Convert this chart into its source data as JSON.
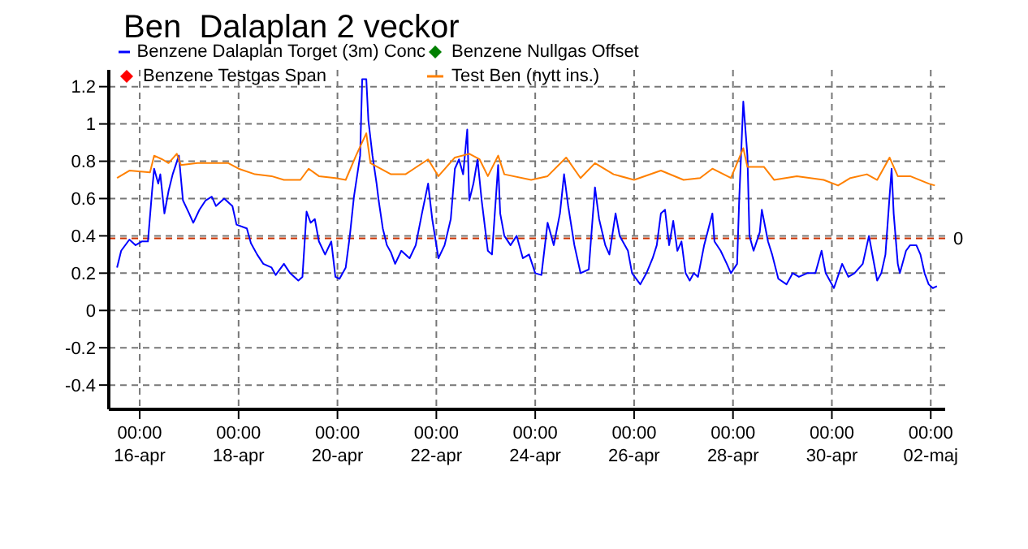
{
  "chart_data": {
    "type": "line",
    "title": "Ben  Dalaplan 2 veckor",
    "xlim": [
      "--04-15T09:00",
      "--05-02T07:00"
    ],
    "ylim": [
      -0.53,
      1.29
    ],
    "xticks": [
      {
        "value": "--04-16T00:00",
        "label": "00:00\n16-apr"
      },
      {
        "value": "--04-18T00:00",
        "label": "00:00\n18-apr"
      },
      {
        "value": "--04-20T00:00",
        "label": "00:00\n20-apr"
      },
      {
        "value": "--04-22T00:00",
        "label": "00:00\n22-apr"
      },
      {
        "value": "--04-24T00:00",
        "label": "00:00\n24-apr"
      },
      {
        "value": "--04-26T00:00",
        "label": "00:00\n26-apr"
      },
      {
        "value": "--04-28T00:00",
        "label": "00:00\n28-apr"
      },
      {
        "value": "--04-30T00:00",
        "label": "00:00\n30-apr"
      },
      {
        "value": "--05-02T00:00",
        "label": "00:00\n02-maj"
      }
    ],
    "yticks": [
      -0.4,
      -0.2,
      0,
      0.2,
      0.4,
      0.6,
      0.8,
      1,
      1.2
    ],
    "grid": true,
    "legend": "top left",
    "marker": "none",
    "line_style": "solid",
    "ref_lines": [
      {
        "axis": "y",
        "value": 0.386,
        "label": "0",
        "color": "#cc3300",
        "line_style": "dashed"
      }
    ],
    "series": [
      {
        "name": "Benzene Dalaplan Torget (3m) Conc",
        "color": "#0000ff",
        "x": [
          "--04-15T13:00",
          "--04-15T15:00",
          "--04-15T19:00",
          "--04-15T22:00",
          "--04-16T01:00",
          "--04-16T04:00",
          "--04-16T06:00",
          "--04-16T07:00",
          "--04-16T09:00",
          "--04-16T10:00",
          "--04-16T12:00",
          "--04-16T14:00",
          "--04-16T16:00",
          "--04-16T19:00",
          "--04-16T21:00",
          "--04-17T00:00",
          "--04-17T02:00",
          "--04-17T05:00",
          "--04-17T08:00",
          "--04-17T11:00",
          "--04-17T13:00",
          "--04-17T17:00",
          "--04-17T21:00",
          "--04-17T23:00",
          "--04-18T04:00",
          "--04-18T06:00",
          "--04-18T09:00",
          "--04-18T12:00",
          "--04-18T16:00",
          "--04-18T18:00",
          "--04-18T22:00",
          "--04-19T01:00",
          "--04-19T05:00",
          "--04-19T07:00",
          "--04-19T09:00",
          "--04-19T11:00",
          "--04-19T13:00",
          "--04-19T15:00",
          "--04-19T18:00",
          "--04-19T21:00",
          "--04-19T23:00",
          "--04-20T01:00",
          "--04-20T04:00",
          "--04-20T06:00",
          "--04-20T08:00",
          "--04-20T11:00",
          "--04-20T12:00",
          "--04-20T14:00",
          "--04-20T15:00",
          "--04-20T17:00",
          "--04-20T19:00",
          "--04-20T20:00",
          "--04-20T22:00",
          "--04-21T00:00",
          "--04-21T02:00",
          "--04-21T04:00",
          "--04-21T07:00",
          "--04-21T11:00",
          "--04-21T14:00",
          "--04-21T17:00",
          "--04-21T20:00",
          "--04-21T22:00",
          "--04-22T01:00",
          "--04-22T04:00",
          "--04-22T07:00",
          "--04-22T09:00",
          "--04-22T11:00",
          "--04-22T13:00",
          "--04-22T15:00",
          "--04-22T16:00",
          "--04-22T18:00",
          "--04-22T20:00",
          "--04-22T22:00",
          "--04-23T01:00",
          "--04-23T03:00",
          "--04-23T06:00",
          "--04-23T07:00",
          "--04-23T09:00",
          "--04-23T12:00",
          "--04-23T15:00",
          "--04-23T18:00",
          "--04-23T21:00",
          "--04-24T00:00",
          "--04-24T03:00",
          "--04-24T06:00",
          "--04-24T09:00",
          "--04-24T12:00",
          "--04-24T14:00",
          "--04-24T16:00",
          "--04-24T19:00",
          "--04-24T22:00",
          "--04-25T02:00",
          "--04-25T03:00",
          "--04-25T05:00",
          "--04-25T07:00",
          "--04-25T10:00",
          "--04-25T12:00",
          "--04-25T15:00",
          "--04-25T17:00",
          "--04-25T21:00",
          "--04-25T23:00",
          "--04-26T03:00",
          "--04-26T06:00",
          "--04-26T09:00",
          "--04-26T11:00",
          "--04-26T13:00",
          "--04-26T15:00",
          "--04-26T17:00",
          "--04-26T19:00",
          "--04-26T21:00",
          "--04-26T23:00",
          "--04-27T01:00",
          "--04-27T03:00",
          "--04-27T05:00",
          "--04-27T07:00",
          "--04-27T10:00",
          "--04-27T14:00",
          "--04-27T15:00",
          "--04-27T18:00",
          "--04-27T21:00",
          "--04-27T23:00",
          "--04-28T02:00",
          "--04-28T03:00",
          "--04-28T05:00",
          "--04-28T07:00",
          "--04-28T08:00",
          "--04-28T10:00",
          "--04-28T13:00",
          "--04-28T14:00",
          "--04-28T17:00",
          "--04-28T19:00",
          "--04-28T22:00",
          "--04-29T02:00",
          "--04-29T05:00",
          "--04-29T08:00",
          "--04-29T12:00",
          "--04-29T16:00",
          "--04-29T19:00",
          "--04-29T21:00",
          "--04-30T01:00",
          "--04-30T05:00",
          "--04-30T08:00",
          "--04-30T11:00",
          "--04-30T15:00",
          "--04-30T18:00",
          "--04-30T20:00",
          "--04-30T22:00",
          "--05-01T00:00",
          "--05-01T02:00",
          "--05-01T04:00",
          "--05-01T05:00",
          "--05-01T06:00",
          "--05-01T08:00",
          "--05-01T09:00",
          "--05-01T12:00",
          "--05-01T14:00",
          "--05-01T17:00",
          "--05-01T19:00",
          "--05-01T21:00",
          "--05-01T23:00",
          "--05-02T01:00",
          "--05-02T03:00"
        ],
        "values": [
          0.23,
          0.32,
          0.38,
          0.35,
          0.37,
          0.37,
          0.64,
          0.76,
          0.68,
          0.73,
          0.52,
          0.64,
          0.73,
          0.83,
          0.59,
          0.52,
          0.47,
          0.54,
          0.59,
          0.61,
          0.56,
          0.6,
          0.56,
          0.46,
          0.44,
          0.36,
          0.3,
          0.25,
          0.23,
          0.19,
          0.25,
          0.2,
          0.16,
          0.18,
          0.53,
          0.47,
          0.49,
          0.37,
          0.3,
          0.37,
          0.18,
          0.17,
          0.23,
          0.4,
          0.61,
          0.83,
          1.24,
          1.24,
          1.02,
          0.83,
          0.68,
          0.59,
          0.44,
          0.35,
          0.31,
          0.25,
          0.32,
          0.28,
          0.35,
          0.52,
          0.68,
          0.49,
          0.28,
          0.35,
          0.49,
          0.76,
          0.81,
          0.73,
          0.97,
          0.59,
          0.68,
          0.81,
          0.59,
          0.32,
          0.3,
          0.78,
          0.52,
          0.4,
          0.35,
          0.4,
          0.28,
          0.3,
          0.2,
          0.19,
          0.47,
          0.35,
          0.52,
          0.73,
          0.56,
          0.35,
          0.2,
          0.22,
          0.37,
          0.66,
          0.49,
          0.35,
          0.3,
          0.52,
          0.4,
          0.32,
          0.2,
          0.14,
          0.2,
          0.28,
          0.35,
          0.52,
          0.54,
          0.35,
          0.48,
          0.32,
          0.37,
          0.2,
          0.16,
          0.2,
          0.18,
          0.35,
          0.52,
          0.37,
          0.32,
          0.25,
          0.2,
          0.25,
          0.59,
          1.12,
          0.83,
          0.4,
          0.32,
          0.42,
          0.54,
          0.37,
          0.3,
          0.17,
          0.14,
          0.2,
          0.18,
          0.2,
          0.2,
          0.32,
          0.2,
          0.12,
          0.25,
          0.18,
          0.2,
          0.25,
          0.4,
          0.28,
          0.16,
          0.2,
          0.3,
          0.61,
          0.76,
          0.52,
          0.25,
          0.2,
          0.32,
          0.35,
          0.35,
          0.3,
          0.2,
          0.14,
          0.12,
          0.13
        ]
      },
      {
        "name": "Benzene Nullgas Offset",
        "type": "scatter",
        "marker": "diamond",
        "color": "#008000"
      },
      {
        "name": "Benzene Testgas Span",
        "type": "scatter",
        "marker": "diamond",
        "color": "#ff0000"
      },
      {
        "name": "Test Ben (nytt ins.)",
        "color": "#ff8000",
        "x": [
          "--04-15T13:00",
          "--04-15T19:00",
          "--04-16T05:00",
          "--04-16T07:00",
          "--04-16T11:00",
          "--04-16T14:00",
          "--04-16T18:00",
          "--04-16T20:00",
          "--04-17T04:00",
          "--04-17T19:00",
          "--04-18T00:00",
          "--04-18T08:00",
          "--04-18T16:00",
          "--04-18T22:00",
          "--04-19T06:00",
          "--04-19T10:00",
          "--04-19T15:00",
          "--04-19T23:00",
          "--04-20T04:00",
          "--04-20T09:00",
          "--04-20T14:00",
          "--04-20T16:00",
          "--04-21T02:00",
          "--04-21T09:00",
          "--04-21T20:00",
          "--04-22T01:00",
          "--04-22T09:00",
          "--04-22T16:00",
          "--04-22T21:00",
          "--04-23T01:00",
          "--04-23T06:00",
          "--04-23T09:00",
          "--04-23T22:00",
          "--04-24T06:00",
          "--04-24T15:00",
          "--04-24T22:00",
          "--04-25T05:00",
          "--04-25T14:00",
          "--04-26T00:00",
          "--04-26T13:00",
          "--04-27T00:00",
          "--04-27T08:00",
          "--04-27T14:00",
          "--04-27T23:00",
          "--04-28T05:00",
          "--04-28T07:00",
          "--04-28T15:00",
          "--04-28T20:00",
          "--04-29T07:00",
          "--04-29T20:00",
          "--04-30T03:00",
          "--04-30T09:00",
          "--04-30T17:00",
          "--04-30T22:00",
          "--05-01T04:00",
          "--05-01T08:00",
          "--05-01T14:00",
          "--05-01T23:00",
          "--05-02T02:00"
        ],
        "values": [
          0.71,
          0.75,
          0.74,
          0.83,
          0.81,
          0.79,
          0.84,
          0.78,
          0.79,
          0.79,
          0.76,
          0.73,
          0.72,
          0.7,
          0.7,
          0.76,
          0.72,
          0.71,
          0.7,
          0.83,
          0.95,
          0.79,
          0.73,
          0.73,
          0.81,
          0.72,
          0.82,
          0.84,
          0.81,
          0.72,
          0.83,
          0.73,
          0.7,
          0.72,
          0.82,
          0.71,
          0.79,
          0.73,
          0.7,
          0.75,
          0.7,
          0.71,
          0.76,
          0.71,
          0.87,
          0.77,
          0.77,
          0.7,
          0.72,
          0.7,
          0.67,
          0.71,
          0.73,
          0.7,
          0.82,
          0.72,
          0.72,
          0.68,
          0.67
        ]
      }
    ]
  }
}
